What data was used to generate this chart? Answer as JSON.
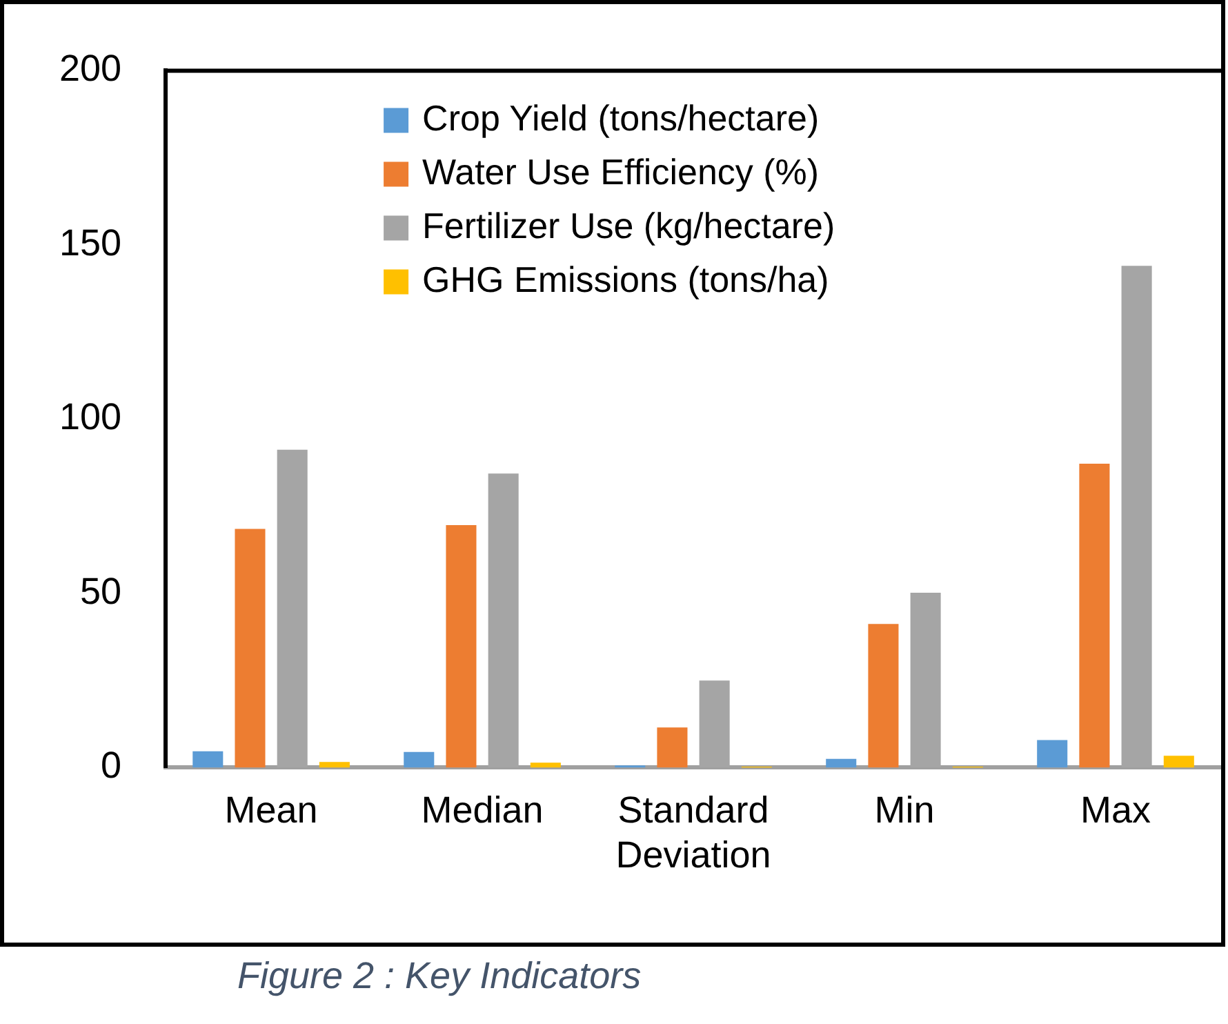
{
  "chart_data": {
    "type": "bar",
    "categories": [
      "Mean",
      "Median",
      "Standard Deviation",
      "Min",
      "Max"
    ],
    "series": [
      {
        "name": "Crop Yield (tons/hectare)",
        "color": "#5b9bd5",
        "values": [
          4.7,
          4.5,
          0.6,
          2.5,
          7.9
        ]
      },
      {
        "name": "Water Use Efficiency (%)",
        "color": "#ed7d31",
        "values": [
          68.5,
          69.6,
          11.5,
          41.2,
          87.2
        ]
      },
      {
        "name": "Fertilizer Use (kg/hectare)",
        "color": "#a5a5a5",
        "values": [
          91.2,
          84.4,
          25,
          50.2,
          144
        ]
      },
      {
        "name": "GHG Emissions (tons/ha)",
        "color": "#ffc000",
        "values": [
          1.6,
          1.4,
          0.3,
          0.3,
          3.4
        ]
      }
    ],
    "ylim": [
      0,
      200
    ],
    "yticks": [
      0,
      50,
      100,
      150,
      200
    ],
    "grid": false,
    "legend": "top",
    "annotations": [
      "Figure 2 : Key Indicators"
    ]
  }
}
